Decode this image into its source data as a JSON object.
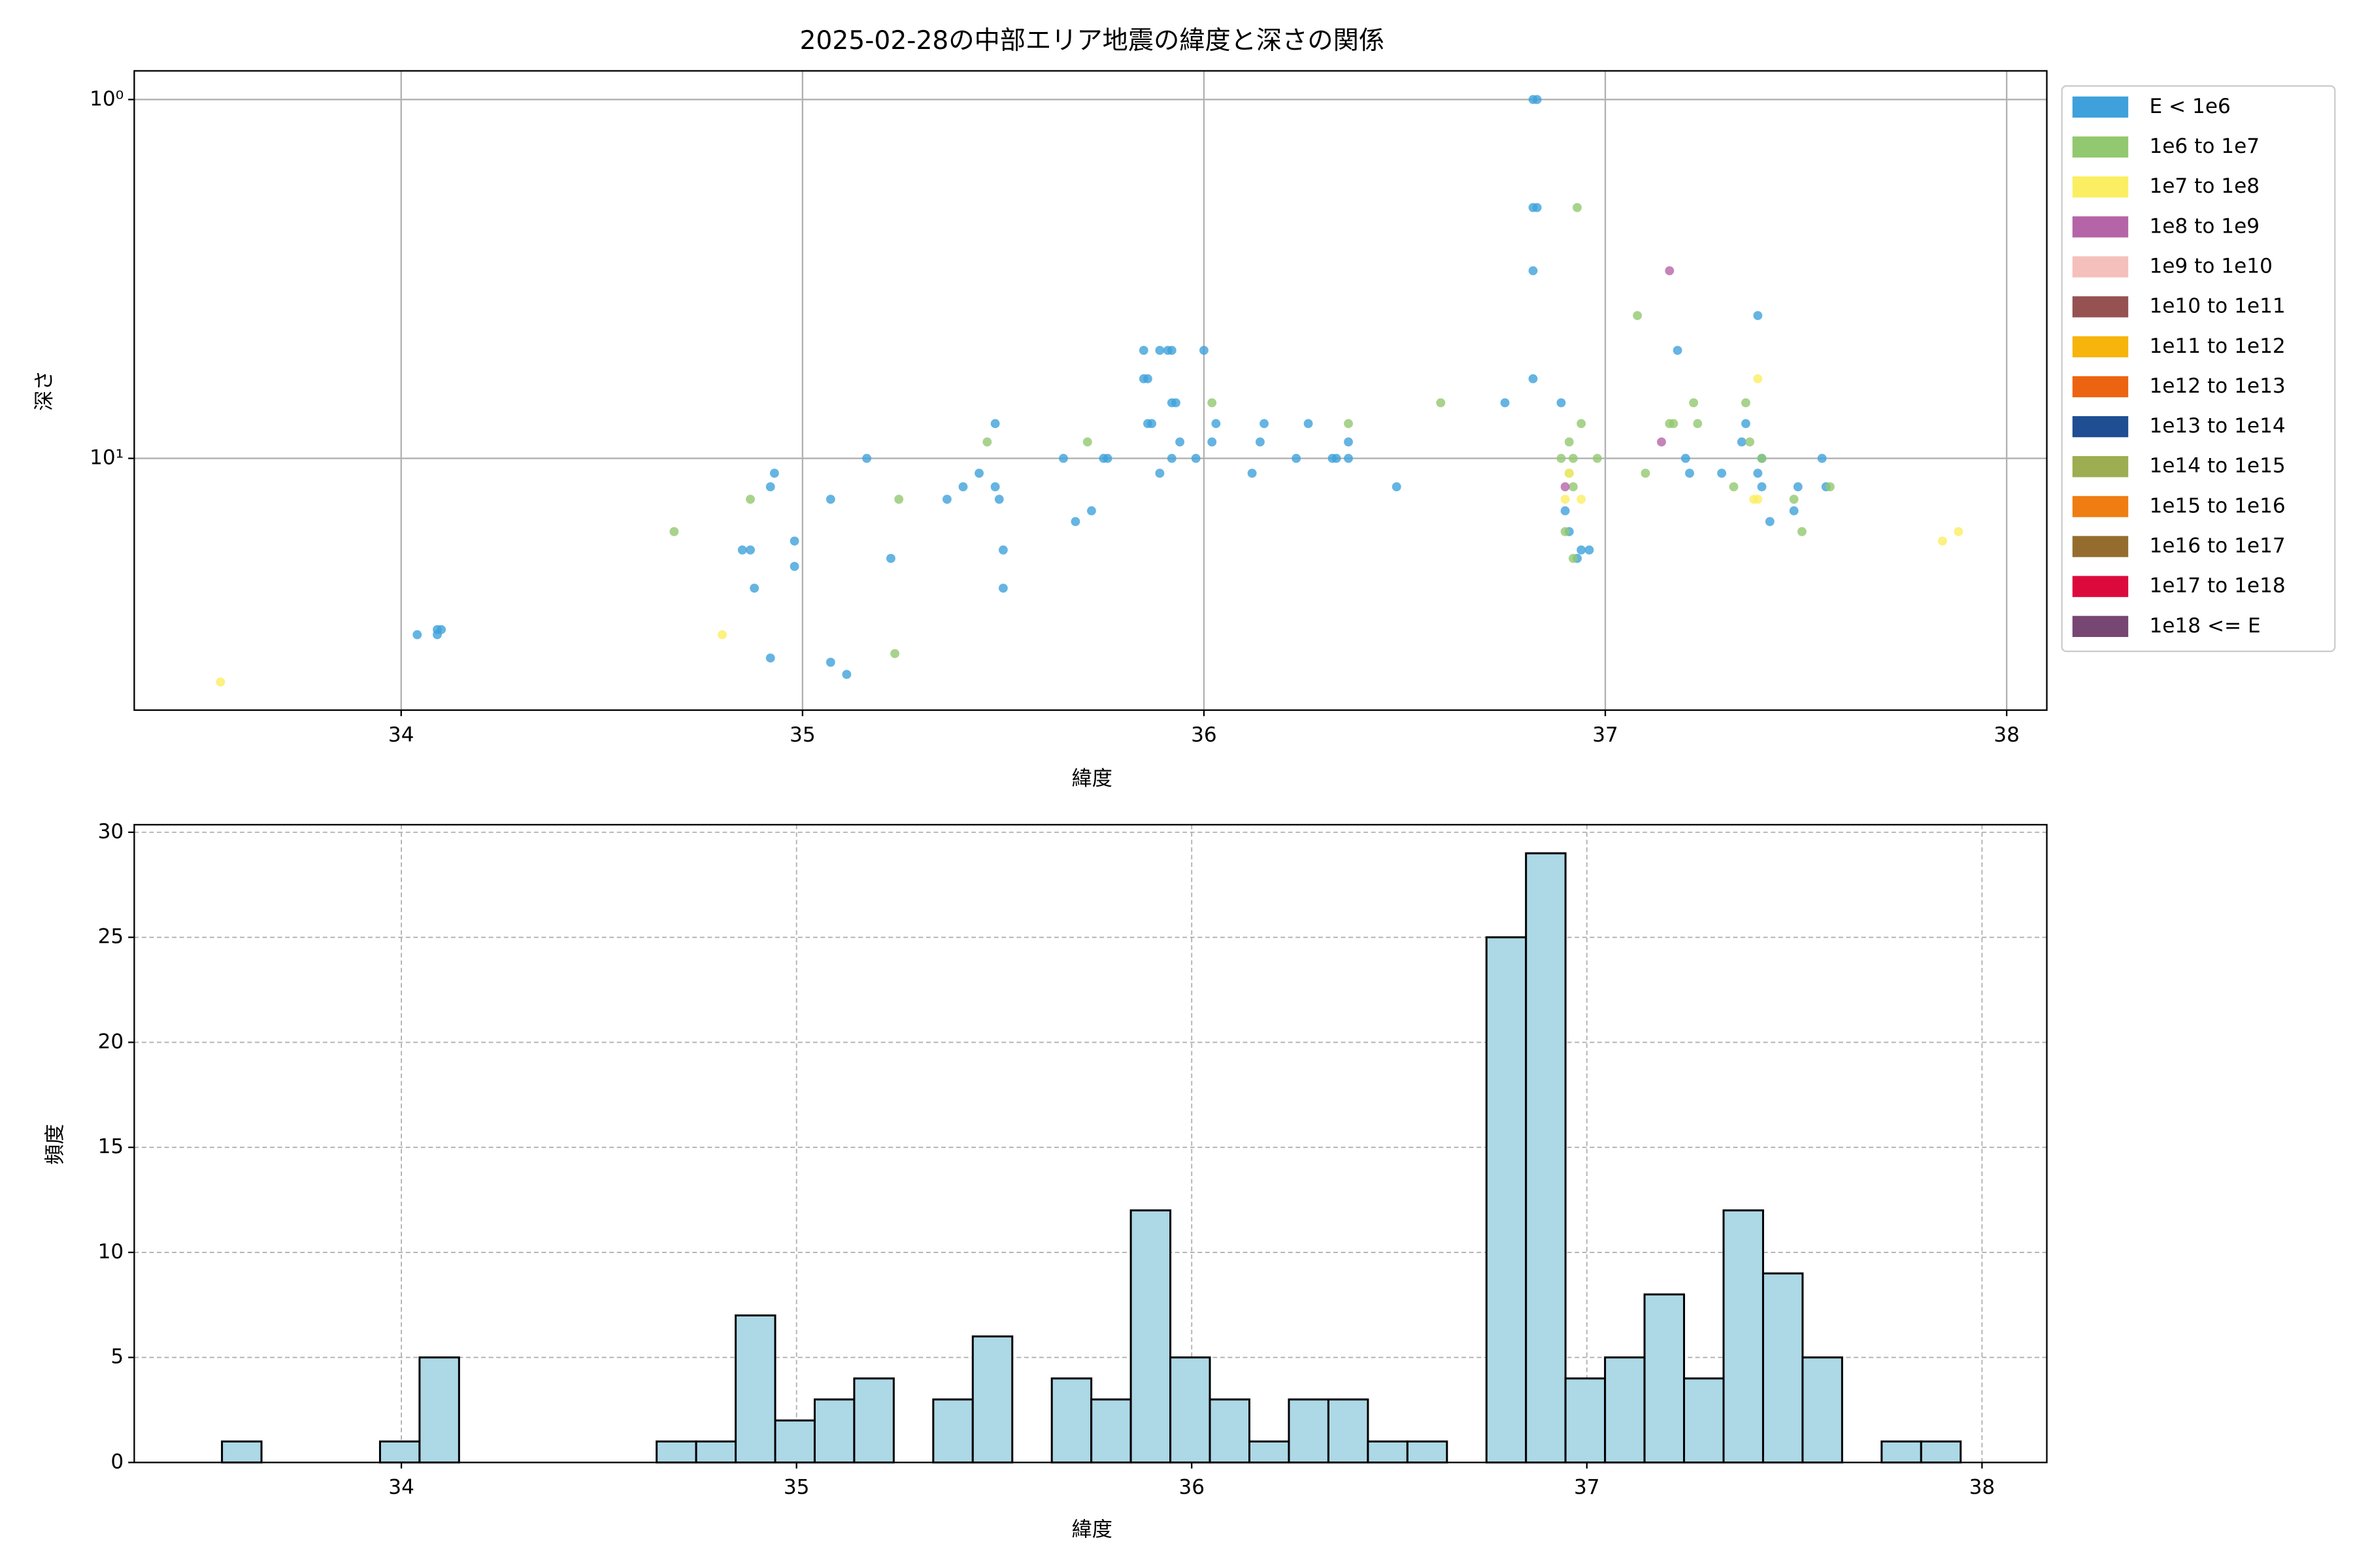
{
  "chart_data": [
    {
      "type": "scatter",
      "title": "2025-02-28の中部エリア地震の緯度と深さの関係",
      "xlabel": "緯度",
      "ylabel": "深さ",
      "xlim": [
        33.335,
        38.1
      ],
      "ylim": [
        0.832,
        50.3
      ],
      "xticks": [
        34,
        35,
        36,
        37,
        38
      ],
      "yticks": [
        {
          "value": 1,
          "label": "10⁰"
        },
        {
          "value": 10,
          "label": "10¹"
        }
      ],
      "log_y": true,
      "y_inverted": true,
      "grid": true,
      "legend": "outside-right",
      "series": [
        {
          "name": "E < 1e6",
          "color": "#3ea1db",
          "x": [
            34.04,
            34.09,
            34.09,
            34.1,
            34.85,
            34.87,
            34.88,
            34.92,
            34.93,
            34.92,
            34.98,
            34.98,
            35.07,
            35.07,
            35.11,
            35.16,
            35.22,
            35.36,
            35.4,
            35.44,
            35.48,
            35.48,
            35.49,
            35.5,
            35.5,
            35.65,
            35.68,
            35.72,
            35.75,
            35.76,
            35.85,
            35.85,
            35.86,
            35.86,
            35.87,
            35.89,
            35.91,
            35.92,
            35.92,
            35.93,
            35.89,
            35.92,
            35.94,
            35.98,
            36.0,
            36.02,
            36.03,
            36.12,
            36.14,
            36.15,
            36.23,
            36.26,
            36.32,
            36.33,
            36.36,
            36.36,
            36.48,
            36.75,
            36.82,
            36.83,
            36.82,
            36.83,
            36.82,
            36.82,
            36.89,
            36.9,
            36.91,
            36.93,
            36.94,
            36.96,
            37.18,
            37.2,
            37.21,
            37.29,
            37.34,
            37.35,
            37.38,
            37.39,
            37.39,
            37.41,
            37.38,
            37.47,
            37.48,
            37.54,
            37.55
          ],
          "values": [
            31,
            30,
            31,
            30,
            18,
            18,
            23,
            12,
            11,
            36,
            17,
            20,
            13,
            37,
            40,
            10,
            19,
            13,
            12,
            11,
            8,
            12,
            13,
            18,
            23,
            10,
            15,
            14,
            10,
            10,
            5,
            6,
            6,
            8,
            8,
            5,
            5,
            5,
            7,
            7,
            11,
            10,
            9,
            10,
            5,
            9,
            8,
            11,
            9,
            8,
            10,
            8,
            10,
            10,
            9,
            10,
            12,
            7,
            1,
            1,
            2,
            2,
            3,
            6,
            7,
            14,
            16,
            19,
            18,
            18,
            5,
            10,
            11,
            11,
            9,
            8,
            11,
            10,
            12,
            15,
            4,
            14,
            12,
            10,
            12
          ]
        },
        {
          "name": "1e6 to 1e7",
          "color": "#92c86f",
          "x": [
            34.68,
            34.87,
            35.24,
            35.23,
            35.46,
            35.71,
            36.02,
            36.36,
            36.59,
            36.93,
            37.08,
            36.89,
            36.91,
            36.92,
            36.94,
            36.98,
            36.91,
            36.92,
            36.9,
            36.92,
            37.1,
            37.16,
            37.17,
            37.22,
            37.23,
            37.35,
            37.36,
            37.39,
            37.32,
            37.47,
            37.49,
            37.56
          ],
          "values": [
            16,
            13,
            13,
            35,
            9,
            9,
            7,
            8,
            7,
            2,
            4,
            10,
            9,
            10,
            8,
            10,
            11,
            12,
            16,
            19,
            11,
            8,
            8,
            7,
            8,
            7,
            9,
            10,
            12,
            13,
            16,
            12
          ]
        },
        {
          "name": "1e7 to 1e8",
          "color": "#fbee62",
          "x": [
            33.55,
            34.8,
            37.38,
            37.37,
            37.38,
            36.94,
            36.9,
            37.84,
            37.88,
            36.91
          ],
          "values": [
            42,
            31,
            6,
            13,
            13,
            13,
            13,
            17,
            16,
            11
          ]
        },
        {
          "name": "1e8 to 1e9",
          "color": "#b565a7",
          "x": [
            37.16,
            37.14,
            36.9
          ],
          "values": [
            3,
            9,
            12
          ]
        },
        {
          "name": "1e9 to 1e10",
          "color": "#f5c0bb",
          "x": [],
          "values": []
        },
        {
          "name": "1e10 to 1e11",
          "color": "#955251",
          "x": [],
          "values": []
        },
        {
          "name": "1e11 to 1e12",
          "color": "#f7b40b",
          "x": [],
          "values": []
        },
        {
          "name": "1e12 to 1e13",
          "color": "#ec6411",
          "x": [],
          "values": []
        },
        {
          "name": "1e13 to 1e14",
          "color": "#1f4e93",
          "x": [],
          "values": []
        },
        {
          "name": "1e14 to 1e15",
          "color": "#9cad52",
          "x": [],
          "values": []
        },
        {
          "name": "1e15 to 1e16",
          "color": "#ef7d11",
          "x": [],
          "values": []
        },
        {
          "name": "1e16 to 1e17",
          "color": "#946d2e",
          "x": [],
          "values": []
        },
        {
          "name": "1e17 to 1e18",
          "color": "#dc0a3c",
          "x": [],
          "values": []
        },
        {
          "name": "1e18 <= E",
          "color": "#774672",
          "x": [],
          "values": []
        }
      ]
    },
    {
      "type": "histogram",
      "xlabel": "緯度",
      "ylabel": "頻度",
      "xlim": [
        33.324,
        38.164
      ],
      "ylim": [
        0,
        30.36
      ],
      "xticks": [
        34,
        35,
        36,
        37,
        38
      ],
      "yticks": [
        0,
        5,
        10,
        15,
        20,
        25,
        30
      ],
      "grid": true,
      "grid_style": "dashed",
      "color": "#add8e6",
      "edgecolor": "#000000",
      "bins": [
        33.546,
        33.646,
        33.746,
        33.846,
        33.946,
        34.046,
        34.146,
        34.246,
        34.346,
        34.446,
        34.546,
        34.646,
        34.746,
        34.846,
        34.946,
        35.046,
        35.146,
        35.246,
        35.346,
        35.446,
        35.546,
        35.646,
        35.746,
        35.846,
        35.946,
        36.046,
        36.146,
        36.246,
        36.346,
        36.446,
        36.546,
        36.646,
        36.746,
        36.846,
        36.946,
        37.046,
        37.146,
        37.246,
        37.346,
        37.446,
        37.546,
        37.646,
        37.746,
        37.846,
        37.946
      ],
      "values": [
        1,
        0,
        0,
        0,
        1,
        5,
        0,
        0,
        0,
        0,
        0,
        1,
        1,
        7,
        2,
        3,
        4,
        0,
        3,
        6,
        0,
        4,
        3,
        12,
        5,
        3,
        1,
        3,
        3,
        1,
        1,
        0,
        25,
        29,
        4,
        5,
        8,
        4,
        12,
        9,
        5,
        0,
        1,
        1
      ]
    }
  ]
}
